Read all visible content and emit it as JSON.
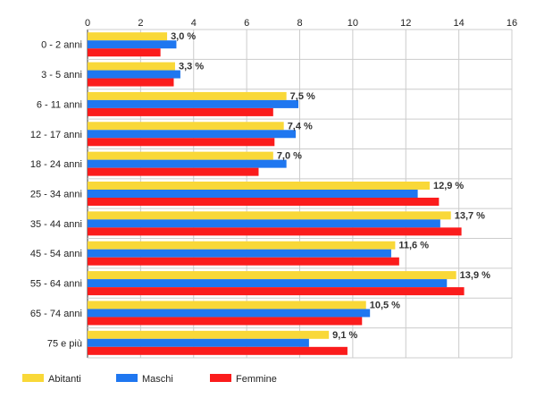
{
  "chart_data": {
    "type": "bar",
    "orientation": "horizontal",
    "categories": [
      "0 - 2 anni",
      "3 - 5 anni",
      "6 - 11 anni",
      "12 - 17 anni",
      "18 - 24 anni",
      "25 - 34 anni",
      "35 - 44 anni",
      "45 - 54 anni",
      "55 - 64 anni",
      "65 - 74 anni",
      "75 e più"
    ],
    "series": [
      {
        "name": "Abitanti",
        "color": "#f9d838",
        "values": [
          3.0,
          3.3,
          7.5,
          7.4,
          7.0,
          12.9,
          13.7,
          11.6,
          13.9,
          10.5,
          9.1
        ]
      },
      {
        "name": "Maschi",
        "color": "#1f77f0",
        "values": [
          3.35,
          3.5,
          7.95,
          7.85,
          7.5,
          12.45,
          13.3,
          11.45,
          13.55,
          10.65,
          8.35
        ]
      },
      {
        "name": "Femmine",
        "color": "#fb1c1c",
        "values": [
          2.75,
          3.25,
          7.0,
          7.05,
          6.45,
          13.25,
          14.1,
          11.75,
          14.2,
          10.35,
          9.8
        ]
      }
    ],
    "data_labels": [
      "3,0 %",
      "3,3 %",
      "7,5 %",
      "7,4 %",
      "7,0 %",
      "12,9 %",
      "13,7 %",
      "11,6 %",
      "13,9 %",
      "10,5 %",
      "9,1 %"
    ],
    "x_ticks": [
      "0",
      "2",
      "4",
      "6",
      "8",
      "10",
      "12",
      "14",
      "16"
    ],
    "xlim": [
      0,
      16
    ],
    "grid": true,
    "legend_position": "bottom-left"
  }
}
